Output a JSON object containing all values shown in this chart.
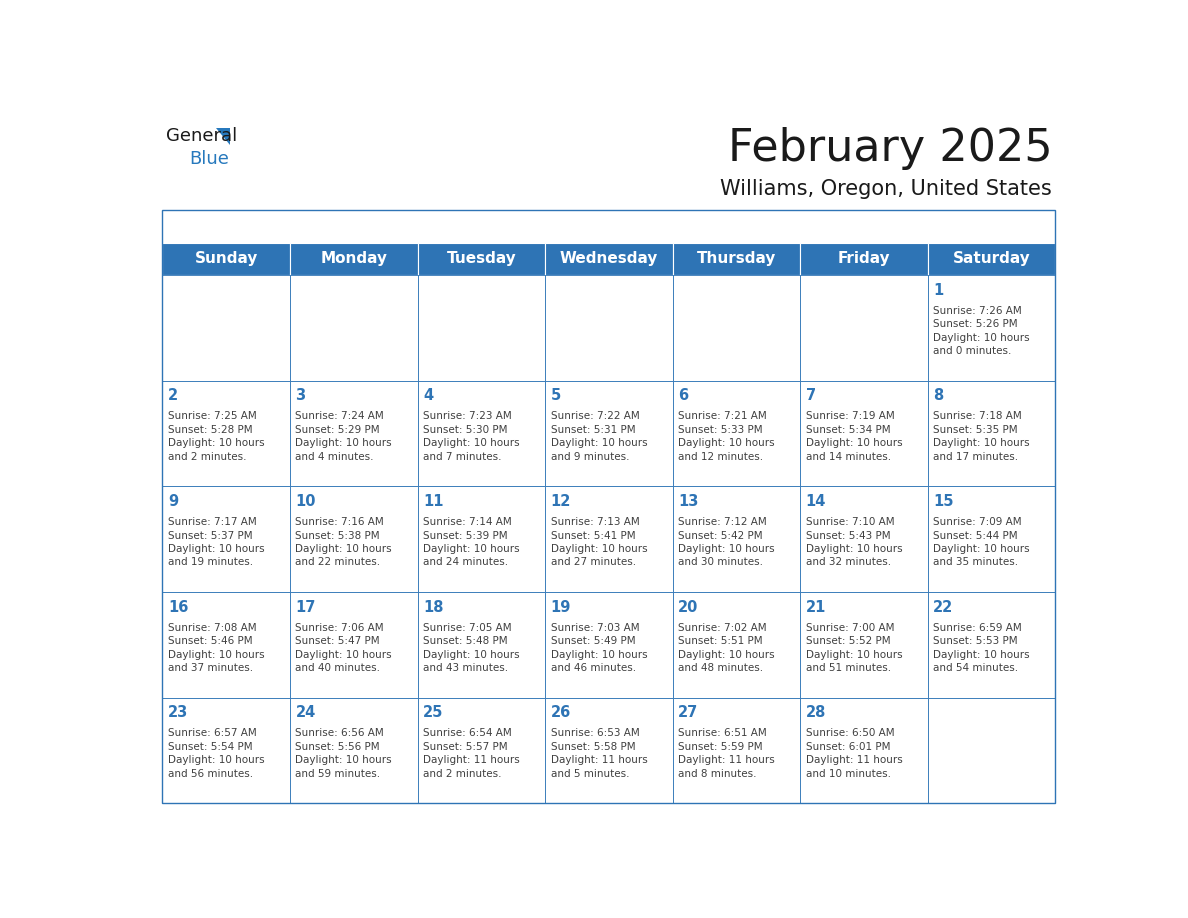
{
  "title": "February 2025",
  "subtitle": "Williams, Oregon, United States",
  "days_of_week": [
    "Sunday",
    "Monday",
    "Tuesday",
    "Wednesday",
    "Thursday",
    "Friday",
    "Saturday"
  ],
  "header_bg": "#2E74B5",
  "header_text": "#FFFFFF",
  "cell_bg": "#FFFFFF",
  "border_color": "#2E74B5",
  "day_number_color": "#2E74B5",
  "text_color": "#404040",
  "title_color": "#1a1a1a",
  "logo_general_color": "#1a1a1a",
  "logo_blue_color": "#2779BD",
  "calendar_data": [
    [
      null,
      null,
      null,
      null,
      null,
      null,
      {
        "day": "1",
        "sunrise": "7:26 AM",
        "sunset": "5:26 PM",
        "dl1": "Daylight: 10 hours",
        "dl2": "and 0 minutes."
      }
    ],
    [
      {
        "day": "2",
        "sunrise": "7:25 AM",
        "sunset": "5:28 PM",
        "dl1": "Daylight: 10 hours",
        "dl2": "and 2 minutes."
      },
      {
        "day": "3",
        "sunrise": "7:24 AM",
        "sunset": "5:29 PM",
        "dl1": "Daylight: 10 hours",
        "dl2": "and 4 minutes."
      },
      {
        "day": "4",
        "sunrise": "7:23 AM",
        "sunset": "5:30 PM",
        "dl1": "Daylight: 10 hours",
        "dl2": "and 7 minutes."
      },
      {
        "day": "5",
        "sunrise": "7:22 AM",
        "sunset": "5:31 PM",
        "dl1": "Daylight: 10 hours",
        "dl2": "and 9 minutes."
      },
      {
        "day": "6",
        "sunrise": "7:21 AM",
        "sunset": "5:33 PM",
        "dl1": "Daylight: 10 hours",
        "dl2": "and 12 minutes."
      },
      {
        "day": "7",
        "sunrise": "7:19 AM",
        "sunset": "5:34 PM",
        "dl1": "Daylight: 10 hours",
        "dl2": "and 14 minutes."
      },
      {
        "day": "8",
        "sunrise": "7:18 AM",
        "sunset": "5:35 PM",
        "dl1": "Daylight: 10 hours",
        "dl2": "and 17 minutes."
      }
    ],
    [
      {
        "day": "9",
        "sunrise": "7:17 AM",
        "sunset": "5:37 PM",
        "dl1": "Daylight: 10 hours",
        "dl2": "and 19 minutes."
      },
      {
        "day": "10",
        "sunrise": "7:16 AM",
        "sunset": "5:38 PM",
        "dl1": "Daylight: 10 hours",
        "dl2": "and 22 minutes."
      },
      {
        "day": "11",
        "sunrise": "7:14 AM",
        "sunset": "5:39 PM",
        "dl1": "Daylight: 10 hours",
        "dl2": "and 24 minutes."
      },
      {
        "day": "12",
        "sunrise": "7:13 AM",
        "sunset": "5:41 PM",
        "dl1": "Daylight: 10 hours",
        "dl2": "and 27 minutes."
      },
      {
        "day": "13",
        "sunrise": "7:12 AM",
        "sunset": "5:42 PM",
        "dl1": "Daylight: 10 hours",
        "dl2": "and 30 minutes."
      },
      {
        "day": "14",
        "sunrise": "7:10 AM",
        "sunset": "5:43 PM",
        "dl1": "Daylight: 10 hours",
        "dl2": "and 32 minutes."
      },
      {
        "day": "15",
        "sunrise": "7:09 AM",
        "sunset": "5:44 PM",
        "dl1": "Daylight: 10 hours",
        "dl2": "and 35 minutes."
      }
    ],
    [
      {
        "day": "16",
        "sunrise": "7:08 AM",
        "sunset": "5:46 PM",
        "dl1": "Daylight: 10 hours",
        "dl2": "and 37 minutes."
      },
      {
        "day": "17",
        "sunrise": "7:06 AM",
        "sunset": "5:47 PM",
        "dl1": "Daylight: 10 hours",
        "dl2": "and 40 minutes."
      },
      {
        "day": "18",
        "sunrise": "7:05 AM",
        "sunset": "5:48 PM",
        "dl1": "Daylight: 10 hours",
        "dl2": "and 43 minutes."
      },
      {
        "day": "19",
        "sunrise": "7:03 AM",
        "sunset": "5:49 PM",
        "dl1": "Daylight: 10 hours",
        "dl2": "and 46 minutes."
      },
      {
        "day": "20",
        "sunrise": "7:02 AM",
        "sunset": "5:51 PM",
        "dl1": "Daylight: 10 hours",
        "dl2": "and 48 minutes."
      },
      {
        "day": "21",
        "sunrise": "7:00 AM",
        "sunset": "5:52 PM",
        "dl1": "Daylight: 10 hours",
        "dl2": "and 51 minutes."
      },
      {
        "day": "22",
        "sunrise": "6:59 AM",
        "sunset": "5:53 PM",
        "dl1": "Daylight: 10 hours",
        "dl2": "and 54 minutes."
      }
    ],
    [
      {
        "day": "23",
        "sunrise": "6:57 AM",
        "sunset": "5:54 PM",
        "dl1": "Daylight: 10 hours",
        "dl2": "and 56 minutes."
      },
      {
        "day": "24",
        "sunrise": "6:56 AM",
        "sunset": "5:56 PM",
        "dl1": "Daylight: 10 hours",
        "dl2": "and 59 minutes."
      },
      {
        "day": "25",
        "sunrise": "6:54 AM",
        "sunset": "5:57 PM",
        "dl1": "Daylight: 11 hours",
        "dl2": "and 2 minutes."
      },
      {
        "day": "26",
        "sunrise": "6:53 AM",
        "sunset": "5:58 PM",
        "dl1": "Daylight: 11 hours",
        "dl2": "and 5 minutes."
      },
      {
        "day": "27",
        "sunrise": "6:51 AM",
        "sunset": "5:59 PM",
        "dl1": "Daylight: 11 hours",
        "dl2": "and 8 minutes."
      },
      {
        "day": "28",
        "sunrise": "6:50 AM",
        "sunset": "6:01 PM",
        "dl1": "Daylight: 11 hours",
        "dl2": "and 10 minutes."
      },
      null
    ]
  ]
}
